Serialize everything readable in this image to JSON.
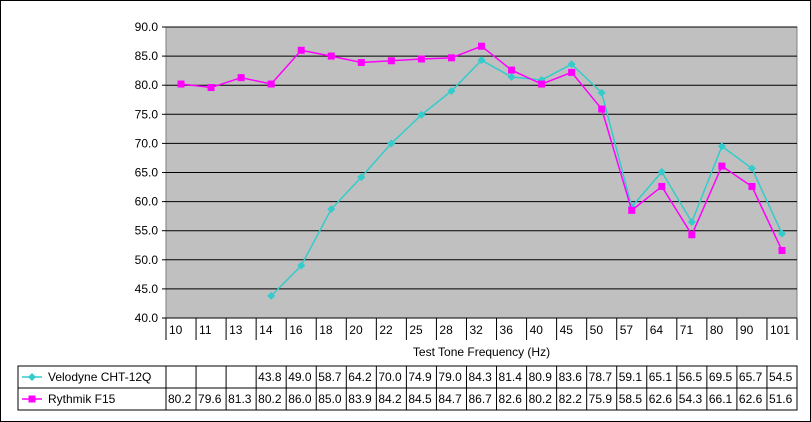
{
  "chart_data": {
    "type": "line",
    "title": "",
    "xlabel": "Test Tone Frequency (Hz)",
    "ylabel": "",
    "ylim": [
      40,
      90
    ],
    "y_ticks": [
      "40.0",
      "45.0",
      "50.0",
      "55.0",
      "60.0",
      "65.0",
      "70.0",
      "75.0",
      "80.0",
      "85.0",
      "90.0"
    ],
    "categories": [
      "10",
      "11",
      "13",
      "14",
      "16",
      "18",
      "20",
      "22",
      "25",
      "28",
      "32",
      "36",
      "40",
      "45",
      "50",
      "57",
      "64",
      "71",
      "80",
      "90",
      "101"
    ],
    "grid": true,
    "plot_background": "#c0c0c0",
    "legend_placement": "data-table-below",
    "series": [
      {
        "name": "Velodyne CHT-12Q",
        "color": "#33cccc",
        "marker": "diamond",
        "values": [
          null,
          null,
          null,
          43.8,
          49.0,
          58.7,
          64.2,
          70.0,
          74.9,
          79.0,
          84.3,
          81.4,
          80.9,
          83.6,
          78.7,
          59.1,
          65.1,
          56.5,
          69.5,
          65.7,
          54.5
        ],
        "labels": [
          "",
          "",
          "",
          "43.8",
          "49.0",
          "58.7",
          "64.2",
          "70.0",
          "74.9",
          "79.0",
          "84.3",
          "81.4",
          "80.9",
          "83.6",
          "78.7",
          "59.1",
          "65.1",
          "56.5",
          "69.5",
          "65.7",
          "54.5"
        ]
      },
      {
        "name": "Rythmik F15",
        "color": "#ff00ff",
        "marker": "square",
        "values": [
          80.2,
          79.6,
          81.3,
          80.2,
          86.0,
          85.0,
          83.9,
          84.2,
          84.5,
          84.7,
          86.7,
          82.6,
          80.2,
          82.2,
          75.9,
          58.5,
          62.6,
          54.3,
          66.1,
          62.6,
          51.6
        ],
        "labels": [
          "80.2",
          "79.6",
          "81.3",
          "80.2",
          "86.0",
          "85.0",
          "83.9",
          "84.2",
          "84.5",
          "84.7",
          "86.7",
          "82.6",
          "80.2",
          "82.2",
          "75.9",
          "58.5",
          "62.6",
          "54.3",
          "66.1",
          "62.6",
          "51.6"
        ]
      }
    ]
  }
}
